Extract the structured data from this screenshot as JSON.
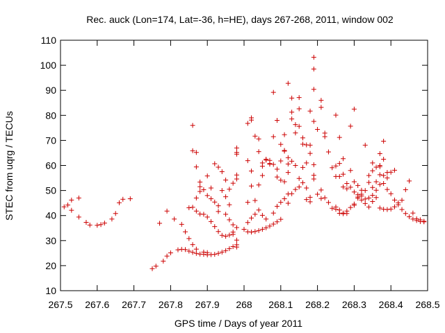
{
  "chart_data": {
    "type": "scatter",
    "title": "Rec. auck (Lon=174, Lat=-36, h=HE), days 267-268, 2011, window 002",
    "xlabel": "GPS time / Days of year 2011",
    "ylabel": "STEC from uqrg / TECUs",
    "xlim": [
      267.5,
      268.5
    ],
    "ylim": [
      10,
      110
    ],
    "x_ticks": [
      267.5,
      267.6,
      267.7,
      267.8,
      267.9,
      268.0,
      268.1,
      268.2,
      268.3,
      268.4,
      268.5
    ],
    "x_tick_labels": [
      "267.5",
      "267.6",
      "267.7",
      "267.8",
      "267.9",
      "268",
      "268.1",
      "268.2",
      "268.3",
      "268.4",
      "268.5"
    ],
    "y_ticks": [
      10,
      20,
      30,
      40,
      50,
      60,
      70,
      80,
      90,
      100,
      110
    ],
    "y_tick_labels": [
      "10",
      "20",
      "30",
      "40",
      "50",
      "60",
      "70",
      "80",
      "90",
      "100",
      "110"
    ],
    "grid": false,
    "marker": "plus",
    "marker_color": "#cc0000",
    "points": [
      [
        267.51,
        43.5
      ],
      [
        267.52,
        44.2
      ],
      [
        267.53,
        46.2
      ],
      [
        267.53,
        42.1
      ],
      [
        267.55,
        47.0
      ],
      [
        267.55,
        39.4
      ],
      [
        267.57,
        37.3
      ],
      [
        267.58,
        36.2
      ],
      [
        267.6,
        36.1
      ],
      [
        267.61,
        36.4
      ],
      [
        267.62,
        37.0
      ],
      [
        267.64,
        38.6
      ],
      [
        267.65,
        40.8
      ],
      [
        267.66,
        45.1
      ],
      [
        267.67,
        46.5
      ],
      [
        267.69,
        46.7
      ],
      [
        267.75,
        18.8
      ],
      [
        267.76,
        19.8
      ],
      [
        267.78,
        21.8
      ],
      [
        267.79,
        23.8
      ],
      [
        267.8,
        25.1
      ],
      [
        267.82,
        26.3
      ],
      [
        267.83,
        26.5
      ],
      [
        267.84,
        26.4
      ],
      [
        267.85,
        25.8
      ],
      [
        267.86,
        25.3
      ],
      [
        267.87,
        24.9
      ],
      [
        267.88,
        24.6
      ],
      [
        267.89,
        24.5
      ],
      [
        267.9,
        24.3
      ],
      [
        267.91,
        24.4
      ],
      [
        267.92,
        24.5
      ],
      [
        267.93,
        24.9
      ],
      [
        267.94,
        25.4
      ],
      [
        267.95,
        26.0
      ],
      [
        267.96,
        26.8
      ],
      [
        267.97,
        27.6
      ],
      [
        267.98,
        28.3
      ],
      [
        267.77,
        36.9
      ],
      [
        267.79,
        41.8
      ],
      [
        267.81,
        38.6
      ],
      [
        267.83,
        36.5
      ],
      [
        267.84,
        33.5
      ],
      [
        267.85,
        30.8
      ],
      [
        267.86,
        28.4
      ],
      [
        267.87,
        26.6
      ],
      [
        267.89,
        25.4
      ],
      [
        267.9,
        25.2
      ],
      [
        267.85,
        43.1
      ],
      [
        267.86,
        43.3
      ],
      [
        267.87,
        41.8
      ],
      [
        267.88,
        40.6
      ],
      [
        267.89,
        40.5
      ],
      [
        267.9,
        39.4
      ],
      [
        267.91,
        37.6
      ],
      [
        267.92,
        35.6
      ],
      [
        267.93,
        33.6
      ],
      [
        267.94,
        32.1
      ],
      [
        267.95,
        31.7
      ],
      [
        267.96,
        32.2
      ],
      [
        267.97,
        33.4
      ],
      [
        267.98,
        35.2
      ],
      [
        267.87,
        47.0
      ],
      [
        267.88,
        49.6
      ],
      [
        267.88,
        51.5
      ],
      [
        267.89,
        50.3
      ],
      [
        267.9,
        48.0
      ],
      [
        267.91,
        46.7
      ],
      [
        267.92,
        45.4
      ],
      [
        267.93,
        43.9
      ],
      [
        267.95,
        40.5
      ],
      [
        267.96,
        38.3
      ],
      [
        267.97,
        36.3
      ],
      [
        267.97,
        32.5
      ],
      [
        267.98,
        30.2
      ],
      [
        267.98,
        27.4
      ],
      [
        267.86,
        76.0
      ],
      [
        267.86,
        65.9
      ],
      [
        267.87,
        65.2
      ],
      [
        267.87,
        59.4
      ],
      [
        267.88,
        53.4
      ],
      [
        267.9,
        55.8
      ],
      [
        267.91,
        51.0
      ],
      [
        267.92,
        60.7
      ],
      [
        267.93,
        59.3
      ],
      [
        267.94,
        57.5
      ],
      [
        267.95,
        54.2
      ],
      [
        267.96,
        50.5
      ],
      [
        267.97,
        52.9
      ],
      [
        267.98,
        54.6
      ],
      [
        267.98,
        56.2
      ],
      [
        267.98,
        65.2
      ],
      [
        267.98,
        67.0
      ],
      [
        267.98,
        64.5
      ],
      [
        267.94,
        50.0
      ],
      [
        267.95,
        47.5
      ],
      [
        267.93,
        41.6
      ],
      [
        267.96,
        44.3
      ],
      [
        268.0,
        34.5
      ],
      [
        268.01,
        33.5
      ],
      [
        268.02,
        33.4
      ],
      [
        268.03,
        33.6
      ],
      [
        268.04,
        34.0
      ],
      [
        268.05,
        34.5
      ],
      [
        268.06,
        35.1
      ],
      [
        268.07,
        35.8
      ],
      [
        268.08,
        36.6
      ],
      [
        268.09,
        37.5
      ],
      [
        268.1,
        38.5
      ],
      [
        268.01,
        37.2
      ],
      [
        268.02,
        39.0
      ],
      [
        268.03,
        40.5
      ],
      [
        268.04,
        42.2
      ],
      [
        268.05,
        40.1
      ],
      [
        268.06,
        38.6
      ],
      [
        268.08,
        41.0
      ],
      [
        268.09,
        43.7
      ],
      [
        268.1,
        45.3
      ],
      [
        268.11,
        46.7
      ],
      [
        268.12,
        44.9
      ],
      [
        268.12,
        48.6
      ],
      [
        268.13,
        48.7
      ],
      [
        268.14,
        50.4
      ],
      [
        268.15,
        51.4
      ],
      [
        268.16,
        53.1
      ],
      [
        268.17,
        51.0
      ],
      [
        268.18,
        47.3
      ],
      [
        268.01,
        45.3
      ],
      [
        268.01,
        61.9
      ],
      [
        268.02,
        51.8
      ],
      [
        268.02,
        57.8
      ],
      [
        268.03,
        46.0
      ],
      [
        268.04,
        52.2
      ],
      [
        268.05,
        56.0
      ],
      [
        268.05,
        59.7
      ],
      [
        268.06,
        62.1
      ],
      [
        268.07,
        60.8
      ],
      [
        268.07,
        62.0
      ],
      [
        268.08,
        60.4
      ],
      [
        268.09,
        55.4
      ],
      [
        268.09,
        58.5
      ],
      [
        268.1,
        54.1
      ],
      [
        268.1,
        61.8
      ],
      [
        268.11,
        53.5
      ],
      [
        268.12,
        57.2
      ],
      [
        268.01,
        76.8
      ],
      [
        268.02,
        78.1
      ],
      [
        268.02,
        79.0
      ],
      [
        268.03,
        71.7
      ],
      [
        268.04,
        70.6
      ],
      [
        268.04,
        65.5
      ],
      [
        268.05,
        61.0
      ],
      [
        268.06,
        62.5
      ],
      [
        268.07,
        60.5
      ],
      [
        268.08,
        89.2
      ],
      [
        268.08,
        71.5
      ],
      [
        268.09,
        78.0
      ],
      [
        268.1,
        68.4
      ],
      [
        268.11,
        66.0
      ],
      [
        268.11,
        72.3
      ],
      [
        268.12,
        92.8
      ],
      [
        268.12,
        60.6
      ],
      [
        268.13,
        86.9
      ],
      [
        268.13,
        81.3
      ],
      [
        268.13,
        78.6
      ],
      [
        268.14,
        76.3
      ],
      [
        268.14,
        73.0
      ],
      [
        268.15,
        87.1
      ],
      [
        268.15,
        82.6
      ],
      [
        268.15,
        75.6
      ],
      [
        268.16,
        68.5
      ],
      [
        268.16,
        71.0
      ],
      [
        268.17,
        68.2
      ],
      [
        268.17,
        61.0
      ],
      [
        268.18,
        81.7
      ],
      [
        268.18,
        68.1
      ],
      [
        268.18,
        64.8
      ],
      [
        268.19,
        60.3
      ],
      [
        268.19,
        56.1
      ],
      [
        268.19,
        54.6
      ],
      [
        268.11,
        65.7
      ],
      [
        268.12,
        63.1
      ],
      [
        268.13,
        61.7
      ],
      [
        268.14,
        60.0
      ],
      [
        268.15,
        54.8
      ],
      [
        268.16,
        59.2
      ],
      [
        268.17,
        46.4
      ],
      [
        268.18,
        45.5
      ],
      [
        268.19,
        103.2
      ],
      [
        268.19,
        98.5
      ],
      [
        268.19,
        90.4
      ],
      [
        268.19,
        77.6
      ],
      [
        268.2,
        74.4
      ],
      [
        268.21,
        86.0
      ],
      [
        268.21,
        83.2
      ],
      [
        268.22,
        72.9
      ],
      [
        268.22,
        71.5
      ],
      [
        268.23,
        65.4
      ],
      [
        268.24,
        59.1
      ],
      [
        268.25,
        55.6
      ],
      [
        268.25,
        80.1
      ],
      [
        268.26,
        71.2
      ],
      [
        268.26,
        60.8
      ],
      [
        268.27,
        62.7
      ],
      [
        268.27,
        56.5
      ],
      [
        268.28,
        52.8
      ],
      [
        268.29,
        75.7
      ],
      [
        268.29,
        58.0
      ],
      [
        268.3,
        82.5
      ],
      [
        268.3,
        53.5
      ],
      [
        268.31,
        52.0
      ],
      [
        268.32,
        50.1
      ],
      [
        268.32,
        48.5
      ],
      [
        268.33,
        68.1
      ],
      [
        268.34,
        56.0
      ],
      [
        268.35,
        61.0
      ],
      [
        268.35,
        57.9
      ],
      [
        268.36,
        59.3
      ],
      [
        268.2,
        48.5
      ],
      [
        268.21,
        50.2
      ],
      [
        268.21,
        46.8
      ],
      [
        268.22,
        47.1
      ],
      [
        268.23,
        45.2
      ],
      [
        268.24,
        42.9
      ],
      [
        268.25,
        42.5
      ],
      [
        268.26,
        42.2
      ],
      [
        268.27,
        41.0
      ],
      [
        268.28,
        41.8
      ],
      [
        268.29,
        43.2
      ],
      [
        268.3,
        44.6
      ],
      [
        268.31,
        46.9
      ],
      [
        268.32,
        47.8
      ],
      [
        268.33,
        46.6
      ],
      [
        268.34,
        47.0
      ],
      [
        268.35,
        48.1
      ],
      [
        268.36,
        50.1
      ],
      [
        268.37,
        52.4
      ],
      [
        268.38,
        56.0
      ],
      [
        268.39,
        57.2
      ],
      [
        268.4,
        57.3
      ],
      [
        268.41,
        58.1
      ],
      [
        268.25,
        59.8
      ],
      [
        268.26,
        55.6
      ],
      [
        268.27,
        51.4
      ],
      [
        268.28,
        50.7
      ],
      [
        268.29,
        51.3
      ],
      [
        268.3,
        49.4
      ],
      [
        268.31,
        48.3
      ],
      [
        268.32,
        46.2
      ],
      [
        268.33,
        44.8
      ],
      [
        268.34,
        43.4
      ],
      [
        268.35,
        45.6
      ],
      [
        268.36,
        53.5
      ],
      [
        268.37,
        56.3
      ],
      [
        268.37,
        64.7
      ],
      [
        268.37,
        60.0
      ],
      [
        268.38,
        62.5
      ],
      [
        268.38,
        69.7
      ],
      [
        268.39,
        55.0
      ],
      [
        268.25,
        43.4
      ],
      [
        268.26,
        40.9
      ],
      [
        268.27,
        40.7
      ],
      [
        268.28,
        40.8
      ],
      [
        268.3,
        44.1
      ],
      [
        268.31,
        47.4
      ],
      [
        268.33,
        50.0
      ],
      [
        268.34,
        53.2
      ],
      [
        268.35,
        51.2
      ],
      [
        268.36,
        47.2
      ],
      [
        268.37,
        43.0
      ],
      [
        268.38,
        42.5
      ],
      [
        268.39,
        42.4
      ],
      [
        268.4,
        42.6
      ],
      [
        268.41,
        43.5
      ],
      [
        268.42,
        45.1
      ],
      [
        268.43,
        46.1
      ],
      [
        268.44,
        50.3
      ],
      [
        268.45,
        53.8
      ],
      [
        268.46,
        41.0
      ],
      [
        268.47,
        38.7
      ],
      [
        268.48,
        38.3
      ],
      [
        268.49,
        37.7
      ],
      [
        268.37,
        59.5
      ],
      [
        268.38,
        52.8
      ],
      [
        268.39,
        50.4
      ],
      [
        268.4,
        48.7
      ],
      [
        268.41,
        46.2
      ],
      [
        268.42,
        44.3
      ],
      [
        268.43,
        42.4
      ],
      [
        268.44,
        40.8
      ],
      [
        268.45,
        39.5
      ],
      [
        268.46,
        38.6
      ],
      [
        268.47,
        38.0
      ],
      [
        268.48,
        37.6
      ],
      [
        268.49,
        37.5
      ]
    ]
  }
}
